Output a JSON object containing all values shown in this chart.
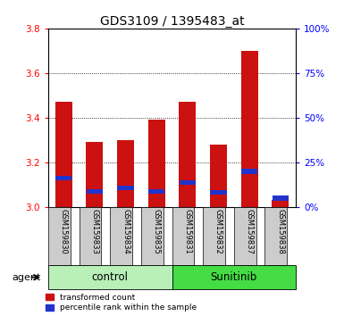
{
  "title": "GDS3109 / 1395483_at",
  "samples": [
    "GSM159830",
    "GSM159833",
    "GSM159834",
    "GSM159835",
    "GSM159831",
    "GSM159832",
    "GSM159837",
    "GSM159838"
  ],
  "red_values": [
    3.47,
    3.29,
    3.3,
    3.39,
    3.47,
    3.28,
    3.7,
    3.03
  ],
  "blue_values": [
    3.13,
    3.07,
    3.085,
    3.07,
    3.11,
    3.065,
    3.16,
    3.04
  ],
  "ylim_left": [
    3.0,
    3.8
  ],
  "ylim_right": [
    0,
    100
  ],
  "yticks_left": [
    3.0,
    3.2,
    3.4,
    3.6,
    3.8
  ],
  "yticks_right": [
    0,
    25,
    50,
    75,
    100
  ],
  "groups": [
    {
      "label": "control",
      "indices": [
        0,
        1,
        2,
        3
      ],
      "color": "#b8f0b8"
    },
    {
      "label": "Sunitinib",
      "indices": [
        4,
        5,
        6,
        7
      ],
      "color": "#44dd44"
    }
  ],
  "bar_color": "#cc1111",
  "blue_color": "#2233cc",
  "bar_width": 0.55,
  "agent_label": "agent",
  "legend1": "transformed count",
  "legend2": "percentile rank within the sample",
  "bg_color": "#ffffff",
  "grid_dotted_vals": [
    3.2,
    3.4,
    3.6
  ],
  "title_fontsize": 10,
  "tick_fontsize": 7.5,
  "sample_fontsize": 6.0,
  "group_label_fontsize": 8.5,
  "legend_fontsize": 6.5,
  "agent_fontsize": 8
}
